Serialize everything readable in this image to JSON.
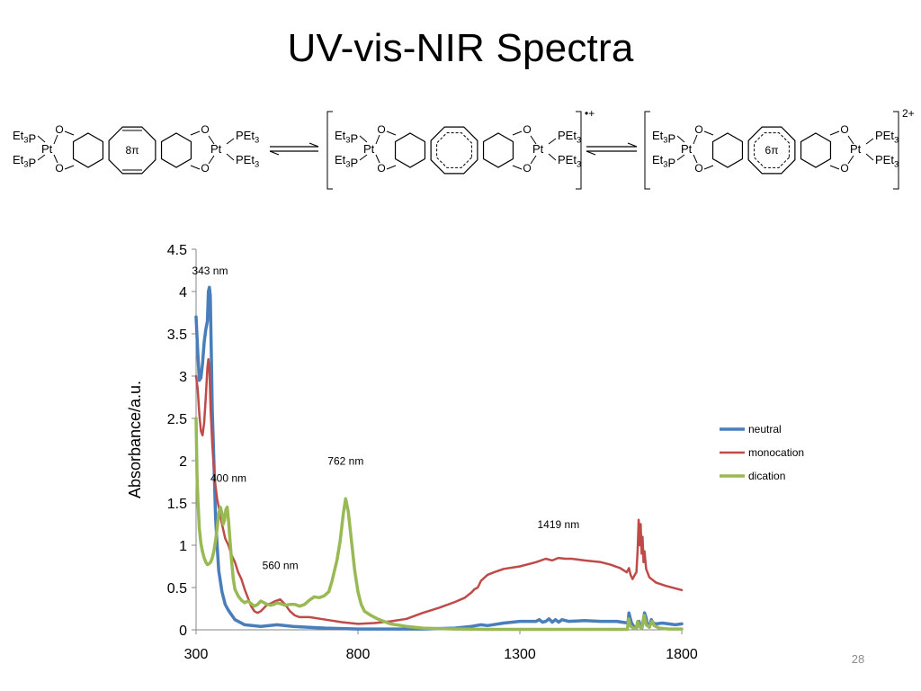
{
  "slide": {
    "title": "UV-vis-NIR Spectra",
    "page_number": "28"
  },
  "scheme": {
    "molecules": [
      {
        "ring_label": "8π",
        "charge": "",
        "ligands": {
          "left_top": "Et3P",
          "left_bottom": "Et3P",
          "metal_left": "Pt",
          "metal_right": "Pt",
          "right_top": "PEt3",
          "right_bottom": "PEt3",
          "oxygen": "O"
        }
      },
      {
        "ring_label": "",
        "charge": "•+",
        "ligands": {
          "left_top": "Et3P",
          "left_bottom": "Et3P",
          "metal_left": "Pt",
          "metal_right": "Pt",
          "right_top": "PEt3",
          "right_bottom": "PEt3",
          "oxygen": "O"
        }
      },
      {
        "ring_label": "6π",
        "charge": "2+",
        "ligands": {
          "left_top": "Et3P",
          "left_bottom": "Et3P",
          "metal_left": "Pt",
          "metal_right": "Pt",
          "right_top": "PEt3",
          "right_bottom": "PEt3",
          "oxygen": "O"
        }
      }
    ]
  },
  "chart_data": {
    "type": "line",
    "title": "",
    "xlabel": "",
    "ylabel": "Absorbance/a.u.",
    "xlim": [
      300,
      1800
    ],
    "ylim": [
      0,
      4.5
    ],
    "xticks": [
      300,
      800,
      1300,
      1800
    ],
    "yticks": [
      0,
      0.5,
      1,
      1.5,
      2,
      2.5,
      3,
      3.5,
      4,
      4.5
    ],
    "ytick_labels": [
      "0",
      "0.5",
      "1",
      "1.5",
      "2",
      "2.5",
      "3",
      "3.5",
      "4",
      "4.5"
    ],
    "grid": false,
    "legend_position": "right",
    "annotations": [
      {
        "text": "343 nm",
        "x": 343,
        "y": 4.2
      },
      {
        "text": "400 nm",
        "x": 400,
        "y": 1.75
      },
      {
        "text": "560 nm",
        "x": 560,
        "y": 0.72
      },
      {
        "text": "762 nm",
        "x": 762,
        "y": 1.95
      },
      {
        "text": "1419 nm",
        "x": 1419,
        "y": 1.2
      }
    ],
    "series": [
      {
        "name": "neutral",
        "color": "#4a7ebb",
        "stroke_width": 3.5,
        "points": [
          [
            300,
            3.7
          ],
          [
            305,
            3.3
          ],
          [
            310,
            2.95
          ],
          [
            315,
            2.98
          ],
          [
            320,
            3.15
          ],
          [
            325,
            3.4
          ],
          [
            330,
            3.55
          ],
          [
            335,
            3.65
          ],
          [
            338,
            4.0
          ],
          [
            341,
            4.05
          ],
          [
            344,
            3.95
          ],
          [
            347,
            3.3
          ],
          [
            350,
            2.6
          ],
          [
            355,
            2.0
          ],
          [
            360,
            1.35
          ],
          [
            365,
            1.0
          ],
          [
            370,
            0.7
          ],
          [
            380,
            0.45
          ],
          [
            390,
            0.3
          ],
          [
            400,
            0.23
          ],
          [
            420,
            0.12
          ],
          [
            450,
            0.06
          ],
          [
            500,
            0.04
          ],
          [
            550,
            0.06
          ],
          [
            600,
            0.04
          ],
          [
            650,
            0.03
          ],
          [
            700,
            0.02
          ],
          [
            750,
            0.015
          ],
          [
            800,
            0.01
          ],
          [
            900,
            0.01
          ],
          [
            1000,
            0.01
          ],
          [
            1100,
            0.02
          ],
          [
            1150,
            0.04
          ],
          [
            1180,
            0.06
          ],
          [
            1200,
            0.05
          ],
          [
            1250,
            0.08
          ],
          [
            1300,
            0.1
          ],
          [
            1350,
            0.1
          ],
          [
            1360,
            0.12
          ],
          [
            1370,
            0.09
          ],
          [
            1380,
            0.1
          ],
          [
            1390,
            0.13
          ],
          [
            1400,
            0.09
          ],
          [
            1410,
            0.12
          ],
          [
            1420,
            0.09
          ],
          [
            1430,
            0.12
          ],
          [
            1450,
            0.1
          ],
          [
            1500,
            0.11
          ],
          [
            1550,
            0.1
          ],
          [
            1600,
            0.1
          ],
          [
            1634,
            0.08
          ],
          [
            1637,
            0.2
          ],
          [
            1640,
            0.15
          ],
          [
            1645,
            0.08
          ],
          [
            1652,
            0.04
          ],
          [
            1660,
            0.02
          ],
          [
            1665,
            0.06
          ],
          [
            1668,
            0.1
          ],
          [
            1672,
            0.04
          ],
          [
            1677,
            0.02
          ],
          [
            1685,
            0.2
          ],
          [
            1690,
            0.14
          ],
          [
            1694,
            0.05
          ],
          [
            1700,
            0.04
          ],
          [
            1706,
            0.12
          ],
          [
            1712,
            0.08
          ],
          [
            1720,
            0.07
          ],
          [
            1740,
            0.08
          ],
          [
            1760,
            0.07
          ],
          [
            1780,
            0.06
          ],
          [
            1800,
            0.07
          ]
        ]
      },
      {
        "name": "monocation",
        "color": "#be4b48",
        "stroke_width": 2.5,
        "points": [
          [
            300,
            3.0
          ],
          [
            305,
            2.85
          ],
          [
            310,
            2.55
          ],
          [
            315,
            2.35
          ],
          [
            320,
            2.3
          ],
          [
            325,
            2.45
          ],
          [
            330,
            2.75
          ],
          [
            335,
            3.1
          ],
          [
            338,
            3.2
          ],
          [
            341,
            3.1
          ],
          [
            345,
            2.6
          ],
          [
            350,
            2.2
          ],
          [
            355,
            1.9
          ],
          [
            360,
            1.7
          ],
          [
            365,
            1.55
          ],
          [
            370,
            1.45
          ],
          [
            380,
            1.25
          ],
          [
            390,
            1.08
          ],
          [
            400,
            1.0
          ],
          [
            410,
            0.88
          ],
          [
            420,
            0.8
          ],
          [
            430,
            0.68
          ],
          [
            440,
            0.6
          ],
          [
            450,
            0.48
          ],
          [
            460,
            0.38
          ],
          [
            470,
            0.28
          ],
          [
            480,
            0.22
          ],
          [
            490,
            0.2
          ],
          [
            500,
            0.22
          ],
          [
            510,
            0.26
          ],
          [
            520,
            0.3
          ],
          [
            530,
            0.31
          ],
          [
            545,
            0.34
          ],
          [
            560,
            0.36
          ],
          [
            575,
            0.3
          ],
          [
            590,
            0.22
          ],
          [
            605,
            0.17
          ],
          [
            620,
            0.15
          ],
          [
            650,
            0.15
          ],
          [
            700,
            0.12
          ],
          [
            750,
            0.09
          ],
          [
            800,
            0.07
          ],
          [
            850,
            0.08
          ],
          [
            900,
            0.1
          ],
          [
            950,
            0.13
          ],
          [
            1000,
            0.2
          ],
          [
            1050,
            0.26
          ],
          [
            1100,
            0.33
          ],
          [
            1130,
            0.38
          ],
          [
            1150,
            0.44
          ],
          [
            1160,
            0.48
          ],
          [
            1170,
            0.5
          ],
          [
            1180,
            0.58
          ],
          [
            1200,
            0.65
          ],
          [
            1220,
            0.68
          ],
          [
            1250,
            0.72
          ],
          [
            1300,
            0.75
          ],
          [
            1350,
            0.8
          ],
          [
            1380,
            0.84
          ],
          [
            1400,
            0.82
          ],
          [
            1419,
            0.85
          ],
          [
            1440,
            0.84
          ],
          [
            1460,
            0.84
          ],
          [
            1500,
            0.82
          ],
          [
            1550,
            0.8
          ],
          [
            1580,
            0.77
          ],
          [
            1610,
            0.73
          ],
          [
            1630,
            0.68
          ],
          [
            1637,
            0.73
          ],
          [
            1642,
            0.65
          ],
          [
            1648,
            0.6
          ],
          [
            1655,
            0.65
          ],
          [
            1660,
            0.68
          ],
          [
            1664,
            0.95
          ],
          [
            1667,
            1.3
          ],
          [
            1670,
            1.0
          ],
          [
            1673,
            1.25
          ],
          [
            1676,
            0.9
          ],
          [
            1679,
            1.1
          ],
          [
            1682,
            0.8
          ],
          [
            1685,
            0.93
          ],
          [
            1690,
            0.72
          ],
          [
            1700,
            0.62
          ],
          [
            1720,
            0.56
          ],
          [
            1750,
            0.52
          ],
          [
            1780,
            0.49
          ],
          [
            1800,
            0.47
          ]
        ]
      },
      {
        "name": "dication",
        "color": "#98b954",
        "stroke_width": 3.5,
        "points": [
          [
            300,
            2.5
          ],
          [
            303,
            1.8
          ],
          [
            306,
            1.5
          ],
          [
            310,
            1.2
          ],
          [
            315,
            1.02
          ],
          [
            320,
            0.92
          ],
          [
            325,
            0.85
          ],
          [
            330,
            0.8
          ],
          [
            335,
            0.77
          ],
          [
            340,
            0.78
          ],
          [
            345,
            0.8
          ],
          [
            350,
            0.85
          ],
          [
            355,
            0.93
          ],
          [
            360,
            1.05
          ],
          [
            365,
            1.2
          ],
          [
            370,
            1.38
          ],
          [
            375,
            1.45
          ],
          [
            380,
            1.38
          ],
          [
            384,
            1.25
          ],
          [
            388,
            1.3
          ],
          [
            392,
            1.42
          ],
          [
            396,
            1.45
          ],
          [
            400,
            1.3
          ],
          [
            405,
            1.05
          ],
          [
            410,
            0.8
          ],
          [
            415,
            0.6
          ],
          [
            420,
            0.48
          ],
          [
            430,
            0.4
          ],
          [
            440,
            0.35
          ],
          [
            450,
            0.32
          ],
          [
            460,
            0.34
          ],
          [
            470,
            0.31
          ],
          [
            480,
            0.28
          ],
          [
            490,
            0.3
          ],
          [
            500,
            0.34
          ],
          [
            510,
            0.32
          ],
          [
            520,
            0.3
          ],
          [
            530,
            0.29
          ],
          [
            540,
            0.3
          ],
          [
            550,
            0.32
          ],
          [
            560,
            0.31
          ],
          [
            575,
            0.29
          ],
          [
            590,
            0.3
          ],
          [
            605,
            0.3
          ],
          [
            620,
            0.28
          ],
          [
            635,
            0.3
          ],
          [
            650,
            0.35
          ],
          [
            665,
            0.39
          ],
          [
            680,
            0.38
          ],
          [
            695,
            0.4
          ],
          [
            710,
            0.45
          ],
          [
            720,
            0.58
          ],
          [
            735,
            0.82
          ],
          [
            745,
            1.05
          ],
          [
            755,
            1.38
          ],
          [
            762,
            1.55
          ],
          [
            770,
            1.4
          ],
          [
            780,
            1.05
          ],
          [
            790,
            0.7
          ],
          [
            800,
            0.45
          ],
          [
            810,
            0.3
          ],
          [
            820,
            0.22
          ],
          [
            840,
            0.17
          ],
          [
            860,
            0.13
          ],
          [
            880,
            0.1
          ],
          [
            900,
            0.07
          ],
          [
            950,
            0.04
          ],
          [
            1000,
            0.02
          ],
          [
            1100,
            0.01
          ],
          [
            1200,
            0.005
          ],
          [
            1300,
            0.005
          ],
          [
            1500,
            0.005
          ],
          [
            1600,
            0.005
          ],
          [
            1632,
            0.005
          ],
          [
            1636,
            0.13
          ],
          [
            1640,
            0.05
          ],
          [
            1650,
            0.02
          ],
          [
            1660,
            0.02
          ],
          [
            1664,
            0.1
          ],
          [
            1668,
            0.04
          ],
          [
            1676,
            0.02
          ],
          [
            1684,
            0.17
          ],
          [
            1690,
            0.06
          ],
          [
            1700,
            0.03
          ],
          [
            1708,
            0.1
          ],
          [
            1715,
            0.05
          ],
          [
            1730,
            0.02
          ],
          [
            1760,
            0.01
          ],
          [
            1800,
            0.01
          ]
        ]
      }
    ]
  }
}
